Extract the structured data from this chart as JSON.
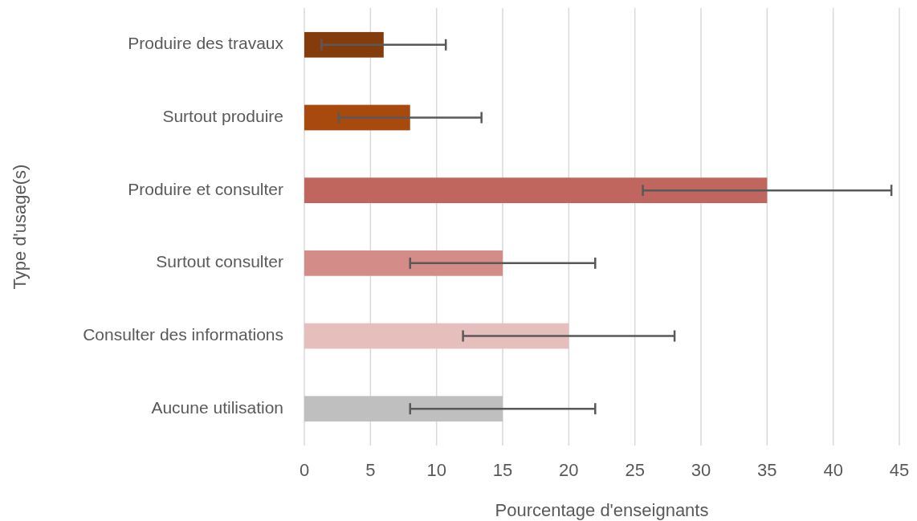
{
  "chart_data": {
    "type": "bar",
    "orientation": "horizontal",
    "xlabel": "Pourcentage d'enseignants",
    "ylabel": "Type d'usage(s)",
    "categories": [
      "Produire des travaux",
      "Surtout produire",
      "Produire et consulter",
      "Surtout consulter",
      "Consulter des informations",
      "Aucune utilisation"
    ],
    "values": [
      6,
      8,
      35,
      15,
      20,
      15
    ],
    "errors": [
      4.7,
      5.4,
      9.4,
      7,
      8,
      7
    ],
    "colors": [
      "#843c0c",
      "#a84a0e",
      "#c0665f",
      "#d38c88",
      "#e6bebc",
      "#bfbfbf"
    ],
    "xlim": [
      0,
      45
    ],
    "xticks": [
      0,
      5,
      10,
      15,
      20,
      25,
      30,
      35,
      40,
      45
    ],
    "grid": "x"
  }
}
